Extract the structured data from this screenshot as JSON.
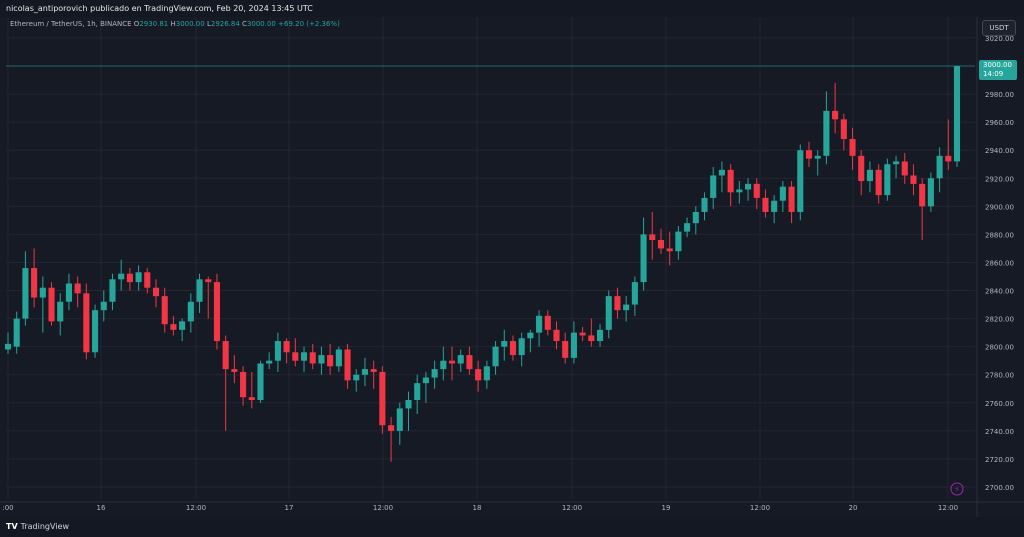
{
  "header": {
    "attribution": "nicolas_antiporovich publicado en TradingView.com, Feb 20, 2024 13:45 UTC"
  },
  "legend": {
    "symbol": "Ethereum / TetherUS, 1h, BINANCE",
    "o_label": "O",
    "o_val": "2930.81",
    "h_label": "H",
    "h_val": "3000.00",
    "l_label": "L",
    "l_val": "2926.84",
    "c_label": "C",
    "c_val": "3000.00",
    "change": "+69.20 (+2.36%)"
  },
  "currency_button": "USDT",
  "last_price": {
    "price": "3000.00",
    "countdown": "14:09"
  },
  "footer": {
    "brand": "TradingView"
  },
  "colors": {
    "up": "#26a69a",
    "down": "#f23645",
    "bg": "#161a25",
    "grid": "#232632"
  },
  "chart_data": {
    "type": "candlestick",
    "yaxis_ticks": [
      2700,
      2720,
      2740,
      2760,
      2780,
      2800,
      2820,
      2840,
      2860,
      2880,
      2900,
      2920,
      2940,
      2960,
      2980,
      3000,
      3020
    ],
    "xaxis_ticks": [
      ":00",
      "16",
      "12:00",
      "17",
      "12:00",
      "18",
      "12:00",
      "19",
      "12:00",
      "20",
      "12:00"
    ],
    "candles": [
      [
        2798,
        2810,
        2795,
        2802
      ],
      [
        2800,
        2825,
        2795,
        2820
      ],
      [
        2820,
        2868,
        2815,
        2856
      ],
      [
        2856,
        2870,
        2828,
        2835
      ],
      [
        2835,
        2850,
        2810,
        2842
      ],
      [
        2842,
        2846,
        2815,
        2818
      ],
      [
        2818,
        2838,
        2808,
        2832
      ],
      [
        2832,
        2852,
        2826,
        2845
      ],
      [
        2845,
        2850,
        2828,
        2838
      ],
      [
        2838,
        2845,
        2791,
        2796
      ],
      [
        2796,
        2830,
        2792,
        2826
      ],
      [
        2826,
        2840,
        2818,
        2832
      ],
      [
        2832,
        2852,
        2826,
        2848
      ],
      [
        2848,
        2862,
        2840,
        2852
      ],
      [
        2852,
        2856,
        2840,
        2846
      ],
      [
        2846,
        2858,
        2840,
        2853
      ],
      [
        2853,
        2856,
        2838,
        2842
      ],
      [
        2842,
        2848,
        2828,
        2836
      ],
      [
        2836,
        2842,
        2810,
        2816
      ],
      [
        2816,
        2822,
        2808,
        2812
      ],
      [
        2812,
        2820,
        2804,
        2818
      ],
      [
        2818,
        2838,
        2810,
        2832
      ],
      [
        2832,
        2852,
        2824,
        2848
      ],
      [
        2848,
        2850,
        2820,
        2846
      ],
      [
        2846,
        2852,
        2798,
        2804
      ],
      [
        2804,
        2808,
        2740,
        2784
      ],
      [
        2784,
        2794,
        2774,
        2782
      ],
      [
        2782,
        2786,
        2758,
        2764
      ],
      [
        2764,
        2782,
        2756,
        2762
      ],
      [
        2762,
        2790,
        2760,
        2788
      ],
      [
        2788,
        2796,
        2784,
        2790
      ],
      [
        2790,
        2810,
        2782,
        2804
      ],
      [
        2804,
        2806,
        2788,
        2796
      ],
      [
        2796,
        2806,
        2786,
        2790
      ],
      [
        2790,
        2800,
        2782,
        2796
      ],
      [
        2796,
        2802,
        2784,
        2788
      ],
      [
        2788,
        2800,
        2780,
        2794
      ],
      [
        2794,
        2802,
        2780,
        2786
      ],
      [
        2786,
        2800,
        2782,
        2798
      ],
      [
        2798,
        2802,
        2770,
        2776
      ],
      [
        2776,
        2784,
        2768,
        2780
      ],
      [
        2780,
        2792,
        2772,
        2784
      ],
      [
        2784,
        2790,
        2770,
        2782
      ],
      [
        2782,
        2786,
        2738,
        2744
      ],
      [
        2744,
        2750,
        2718,
        2740
      ],
      [
        2740,
        2760,
        2730,
        2756
      ],
      [
        2756,
        2768,
        2740,
        2762
      ],
      [
        2762,
        2780,
        2752,
        2774
      ],
      [
        2774,
        2782,
        2760,
        2778
      ],
      [
        2778,
        2790,
        2770,
        2784
      ],
      [
        2784,
        2800,
        2776,
        2790
      ],
      [
        2790,
        2800,
        2776,
        2788
      ],
      [
        2788,
        2798,
        2782,
        2794
      ],
      [
        2794,
        2800,
        2780,
        2784
      ],
      [
        2784,
        2790,
        2768,
        2776
      ],
      [
        2776,
        2790,
        2770,
        2786
      ],
      [
        2786,
        2804,
        2780,
        2800
      ],
      [
        2800,
        2812,
        2790,
        2804
      ],
      [
        2804,
        2808,
        2790,
        2794
      ],
      [
        2794,
        2810,
        2786,
        2806
      ],
      [
        2806,
        2812,
        2796,
        2810
      ],
      [
        2810,
        2826,
        2800,
        2822
      ],
      [
        2822,
        2826,
        2808,
        2812
      ],
      [
        2812,
        2818,
        2798,
        2804
      ],
      [
        2804,
        2810,
        2788,
        2792
      ],
      [
        2792,
        2818,
        2788,
        2810
      ],
      [
        2810,
        2814,
        2804,
        2808
      ],
      [
        2808,
        2820,
        2800,
        2804
      ],
      [
        2804,
        2816,
        2800,
        2812
      ],
      [
        2812,
        2840,
        2806,
        2836
      ],
      [
        2836,
        2842,
        2820,
        2826
      ],
      [
        2826,
        2836,
        2818,
        2830
      ],
      [
        2830,
        2850,
        2822,
        2846
      ],
      [
        2846,
        2892,
        2840,
        2880
      ],
      [
        2880,
        2896,
        2862,
        2876
      ],
      [
        2876,
        2884,
        2866,
        2870
      ],
      [
        2870,
        2882,
        2858,
        2868
      ],
      [
        2868,
        2886,
        2862,
        2882
      ],
      [
        2882,
        2892,
        2878,
        2888
      ],
      [
        2888,
        2900,
        2880,
        2896
      ],
      [
        2896,
        2910,
        2890,
        2906
      ],
      [
        2906,
        2928,
        2898,
        2922
      ],
      [
        2922,
        2932,
        2910,
        2926
      ],
      [
        2926,
        2930,
        2900,
        2910
      ],
      [
        2910,
        2918,
        2902,
        2912
      ],
      [
        2912,
        2920,
        2904,
        2916
      ],
      [
        2916,
        2920,
        2898,
        2906
      ],
      [
        2906,
        2912,
        2892,
        2896
      ],
      [
        2896,
        2908,
        2888,
        2904
      ],
      [
        2904,
        2918,
        2896,
        2914
      ],
      [
        2914,
        2918,
        2888,
        2896
      ],
      [
        2896,
        2944,
        2890,
        2940
      ],
      [
        2940,
        2946,
        2928,
        2934
      ],
      [
        2934,
        2940,
        2922,
        2936
      ],
      [
        2936,
        2982,
        2930,
        2968
      ],
      [
        2968,
        2988,
        2952,
        2962
      ],
      [
        2962,
        2966,
        2940,
        2948
      ],
      [
        2948,
        2956,
        2926,
        2936
      ],
      [
        2936,
        2940,
        2908,
        2918
      ],
      [
        2918,
        2932,
        2910,
        2926
      ],
      [
        2926,
        2930,
        2902,
        2908
      ],
      [
        2908,
        2934,
        2904,
        2930
      ],
      [
        2930,
        2936,
        2920,
        2932
      ],
      [
        2932,
        2938,
        2916,
        2922
      ],
      [
        2922,
        2930,
        2908,
        2916
      ],
      [
        2916,
        2920,
        2876,
        2900
      ],
      [
        2900,
        2924,
        2896,
        2920
      ],
      [
        2920,
        2942,
        2910,
        2936
      ],
      [
        2936,
        2962,
        2926,
        2932
      ],
      [
        2932,
        3000,
        2928,
        3000
      ]
    ]
  }
}
